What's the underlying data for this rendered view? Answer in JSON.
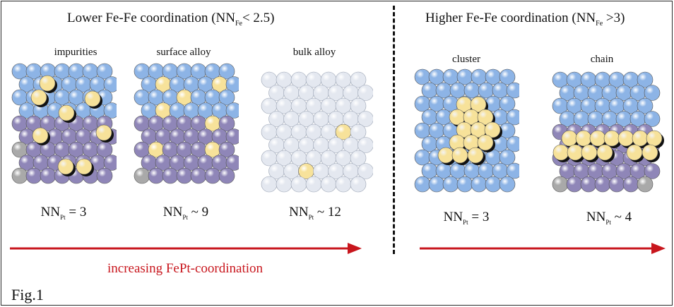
{
  "headings": {
    "lower": {
      "prefix": "Lower Fe-Fe coordination (NN",
      "sub": "Fe",
      "suffix": "< 2.5)"
    },
    "higher": {
      "prefix": "Higher Fe-Fe coordination (NN",
      "sub": "Fe",
      "suffix": " >3)"
    }
  },
  "panels": [
    {
      "label": "impurities",
      "nn_base": "NN",
      "nn_sub": "Pt",
      "nn_rel": " = 3"
    },
    {
      "label": "surface alloy",
      "nn_base": "NN",
      "nn_sub": "Pt",
      "nn_rel": " ~ 9"
    },
    {
      "label": "bulk alloy",
      "nn_base": "NN",
      "nn_sub": "Pt",
      "nn_rel": " ~ 12"
    },
    {
      "label": "cluster",
      "nn_base": "NN",
      "nn_sub": "Pt",
      "nn_rel": " = 3"
    },
    {
      "label": "chain",
      "nn_base": "NN",
      "nn_sub": "Pt",
      "nn_rel": " ~ 4"
    }
  ],
  "caption": "increasing FePt-coordination",
  "figure_label": "Fig.1",
  "colors": {
    "pt_blue": "#8db4e6",
    "pt_purple": "#8f86b8",
    "pt_gray": "#a9a9a9",
    "fe_yellow": "#f7e29a",
    "alloy_white": "#e4e8f0",
    "arrow_red": "#c8161d"
  }
}
